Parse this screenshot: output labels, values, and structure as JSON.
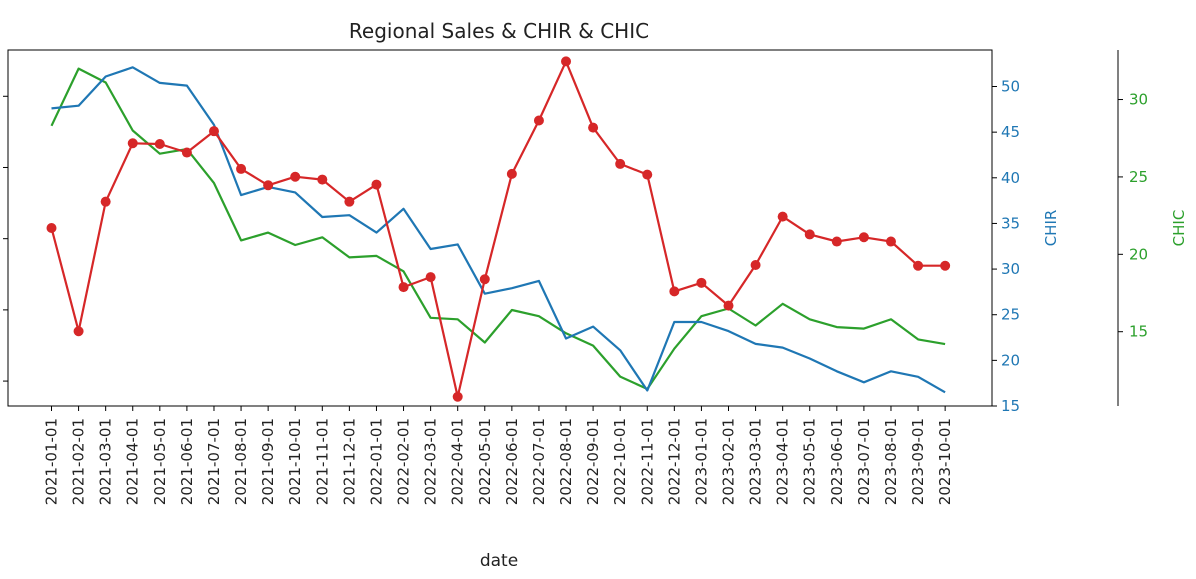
{
  "chart_data": {
    "type": "line",
    "title": "Regional Sales & CHIR & CHIC",
    "xlabel": "date",
    "x": [
      "2021-01-01",
      "2021-02-01",
      "2021-03-01",
      "2021-04-01",
      "2021-05-01",
      "2021-06-01",
      "2021-07-01",
      "2021-08-01",
      "2021-09-01",
      "2021-10-01",
      "2021-11-01",
      "2021-12-01",
      "2022-01-01",
      "2022-02-01",
      "2022-03-01",
      "2022-04-01",
      "2022-05-01",
      "2022-06-01",
      "2022-07-01",
      "2022-08-01",
      "2022-09-01",
      "2022-10-01",
      "2022-11-01",
      "2022-12-01",
      "2023-01-01",
      "2023-02-01",
      "2023-03-01",
      "2023-04-01",
      "2023-05-01",
      "2023-06-01",
      "2023-07-01",
      "2023-08-01",
      "2023-09-01",
      "2023-10-01"
    ],
    "series": [
      {
        "name": "",
        "axis": "left",
        "color": "#d62728",
        "marker": "circle",
        "values": [
          31.5,
          17.0,
          35.2,
          43.4,
          43.3,
          42.1,
          45.1,
          39.8,
          37.5,
          38.7,
          38.3,
          35.2,
          37.6,
          23.2,
          24.6,
          7.8,
          24.3,
          39.1,
          46.6,
          54.9,
          45.6,
          40.5,
          39.0,
          22.6,
          23.8,
          20.6,
          26.3,
          33.1,
          30.6,
          29.6,
          30.2,
          29.6,
          26.2,
          26.2
        ]
      },
      {
        "name": "CHIR",
        "axis": "right1",
        "color": "#1f77b4",
        "values": [
          47.6,
          47.9,
          51.1,
          52.1,
          50.4,
          50.1,
          45.8,
          38.1,
          39.0,
          38.4,
          35.7,
          35.9,
          34.0,
          36.6,
          32.2,
          32.7,
          27.3,
          27.9,
          28.7,
          22.4,
          23.7,
          21.1,
          16.7,
          24.2,
          24.2,
          23.2,
          21.8,
          21.4,
          20.2,
          18.8,
          17.6,
          18.8,
          18.2,
          16.5
        ]
      },
      {
        "name": "CHIC",
        "axis": "right2",
        "color": "#2ca02c",
        "values": [
          28.3,
          32.0,
          31.1,
          28.0,
          26.5,
          26.8,
          24.6,
          20.9,
          21.4,
          20.6,
          21.1,
          19.8,
          19.9,
          18.9,
          15.9,
          15.8,
          14.3,
          16.4,
          16.0,
          14.9,
          14.1,
          12.1,
          11.3,
          13.9,
          16.0,
          16.5,
          15.4,
          16.8,
          15.8,
          15.3,
          15.2,
          15.8,
          14.5,
          14.2
        ]
      }
    ],
    "axes": {
      "left": {
        "ylim": [
          6.5,
          56.5
        ],
        "ticks": [
          10,
          20,
          30,
          40,
          50,
          60
        ],
        "tick_labels": [
          "",
          "",
          "",
          "",
          "",
          ""
        ],
        "label": ""
      },
      "right1": {
        "ylim": [
          15,
          54
        ],
        "ticks": [
          15,
          20,
          25,
          30,
          35,
          40,
          45,
          50
        ],
        "tick_labels": [
          "15",
          "20",
          "25",
          "30",
          "35",
          "40",
          "45",
          "50"
        ],
        "label": "CHIR"
      },
      "right2": {
        "ylim": [
          10.2,
          33.2
        ],
        "ticks": [
          15,
          20,
          25,
          30
        ],
        "tick_labels": [
          "15",
          "20",
          "25",
          "30"
        ],
        "label": "CHIC"
      }
    },
    "grid": false,
    "legend": "none"
  }
}
